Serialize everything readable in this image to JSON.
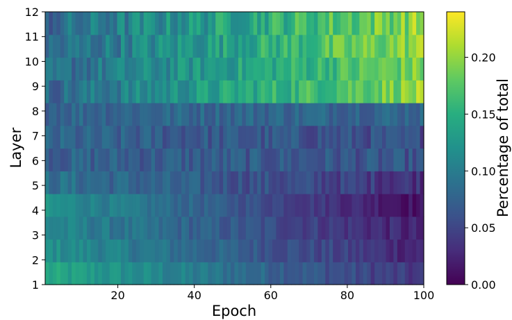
{
  "chart_data": {
    "type": "heatmap",
    "title": "",
    "xlabel": "Epoch",
    "ylabel": "Layer",
    "colorbar_label": "Percentage of total",
    "colormap": "viridis",
    "xlim": [
      1,
      100
    ],
    "ylim": [
      1,
      12
    ],
    "x_ticks": [
      "20",
      "40",
      "60",
      "80",
      "100"
    ],
    "y_ticks": [
      "1",
      "2",
      "3",
      "4",
      "5",
      "6",
      "7",
      "8",
      "9",
      "10",
      "11",
      "12"
    ],
    "colorbar_ticks": [
      "0.00",
      "0.05",
      "0.10",
      "0.15",
      "0.20"
    ],
    "vmin": 0.0,
    "vmax": 0.24,
    "epochs": 100,
    "layer_profiles": [
      {
        "layer": 1,
        "start": 0.14,
        "end": 0.035,
        "noise": 0.015
      },
      {
        "layer": 2,
        "start": 0.12,
        "end": 0.025,
        "noise": 0.015
      },
      {
        "layer": 3,
        "start": 0.11,
        "end": 0.02,
        "noise": 0.015
      },
      {
        "layer": 4,
        "start": 0.12,
        "end": 0.01,
        "noise": 0.012
      },
      {
        "layer": 5,
        "start": 0.09,
        "end": 0.035,
        "noise": 0.018
      },
      {
        "layer": 6,
        "start": 0.075,
        "end": 0.06,
        "noise": 0.02
      },
      {
        "layer": 7,
        "start": 0.075,
        "end": 0.055,
        "noise": 0.02
      },
      {
        "layer": 8,
        "start": 0.08,
        "end": 0.08,
        "noise": 0.018
      },
      {
        "layer": 9,
        "start": 0.08,
        "end": 0.2,
        "noise": 0.025
      },
      {
        "layer": 10,
        "start": 0.08,
        "end": 0.19,
        "noise": 0.025
      },
      {
        "layer": 11,
        "start": 0.08,
        "end": 0.2,
        "noise": 0.028
      },
      {
        "layer": 12,
        "start": 0.08,
        "end": 0.2,
        "noise": 0.03
      }
    ]
  }
}
